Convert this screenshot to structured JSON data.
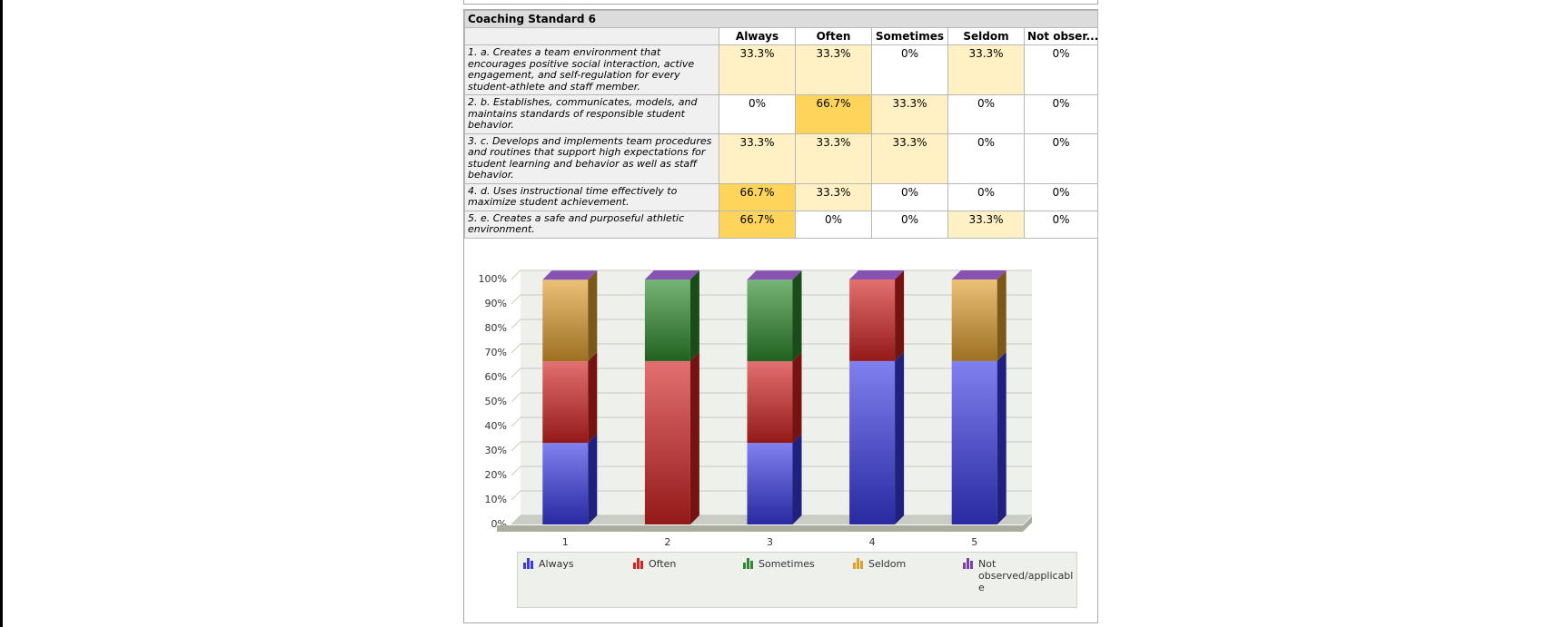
{
  "table": {
    "title": "Coaching Standard 6",
    "columns": [
      "Always",
      "Often",
      "Sometimes",
      "Seldom",
      "Not obser..."
    ],
    "rows": [
      {
        "label": "1. a. Creates a team environment that encourages positive social interaction, active engagement, and self-regulation for every student-athlete and staff member.",
        "values": [
          "33.3%",
          "33.3%",
          "0%",
          "33.3%",
          "0%"
        ],
        "shade": [
          1,
          1,
          0,
          1,
          0
        ]
      },
      {
        "label": "2. b. Establishes, communicates, models, and maintains standards of responsible student behavior.",
        "values": [
          "0%",
          "66.7%",
          "33.3%",
          "0%",
          "0%"
        ],
        "shade": [
          0,
          2,
          1,
          0,
          0
        ]
      },
      {
        "label": "3. c. Develops and implements team procedures and routines that support high expectations for student learning and behavior as well as staff behavior.",
        "values": [
          "33.3%",
          "33.3%",
          "33.3%",
          "0%",
          "0%"
        ],
        "shade": [
          1,
          1,
          1,
          0,
          0
        ]
      },
      {
        "label": "4. d. Uses instructional time effectively to maximize student achievement.",
        "values": [
          "66.7%",
          "33.3%",
          "0%",
          "0%",
          "0%"
        ],
        "shade": [
          2,
          1,
          0,
          0,
          0
        ]
      },
      {
        "label": "5. e. Creates a safe and purposeful athletic environment.",
        "values": [
          "66.7%",
          "0%",
          "0%",
          "33.3%",
          "0%"
        ],
        "shade": [
          2,
          0,
          0,
          1,
          0
        ]
      }
    ]
  },
  "colors": {
    "Always": "#3b3be6",
    "Often": "#d42323",
    "Sometimes": "#2e8b2e",
    "Seldom": "#e0a030",
    "Not observed/applicable": "#7a3fa8",
    "cell_low": "#fff1c4",
    "cell_high": "#ffd45a"
  },
  "chart_data": {
    "type": "bar",
    "stacked": true,
    "categories": [
      "1",
      "2",
      "3",
      "4",
      "5"
    ],
    "series": [
      {
        "name": "Always",
        "values": [
          33.3,
          0,
          33.3,
          66.7,
          66.7
        ]
      },
      {
        "name": "Often",
        "values": [
          33.3,
          66.7,
          33.3,
          33.3,
          0
        ]
      },
      {
        "name": "Sometimes",
        "values": [
          0,
          33.3,
          33.3,
          0,
          0
        ]
      },
      {
        "name": "Seldom",
        "values": [
          33.3,
          0,
          0,
          0,
          33.3
        ]
      },
      {
        "name": "Not observed/applicable",
        "values": [
          0,
          0,
          0,
          0,
          0
        ]
      }
    ],
    "ylim": [
      0,
      100
    ],
    "yticks": [
      "0%",
      "10%",
      "20%",
      "30%",
      "40%",
      "50%",
      "60%",
      "70%",
      "80%",
      "90%",
      "100%"
    ],
    "grid": true,
    "legend_position": "bottom",
    "legend": [
      {
        "label": "Always",
        "lines": [
          "Always"
        ]
      },
      {
        "label": "Often",
        "lines": [
          "Often"
        ]
      },
      {
        "label": "Sometimes",
        "lines": [
          "Sometimes"
        ]
      },
      {
        "label": "Seldom",
        "lines": [
          "Seldom"
        ]
      },
      {
        "label": "Not observed/applicable",
        "lines": [
          "Not",
          "observed/applicabl",
          "e"
        ]
      }
    ]
  }
}
